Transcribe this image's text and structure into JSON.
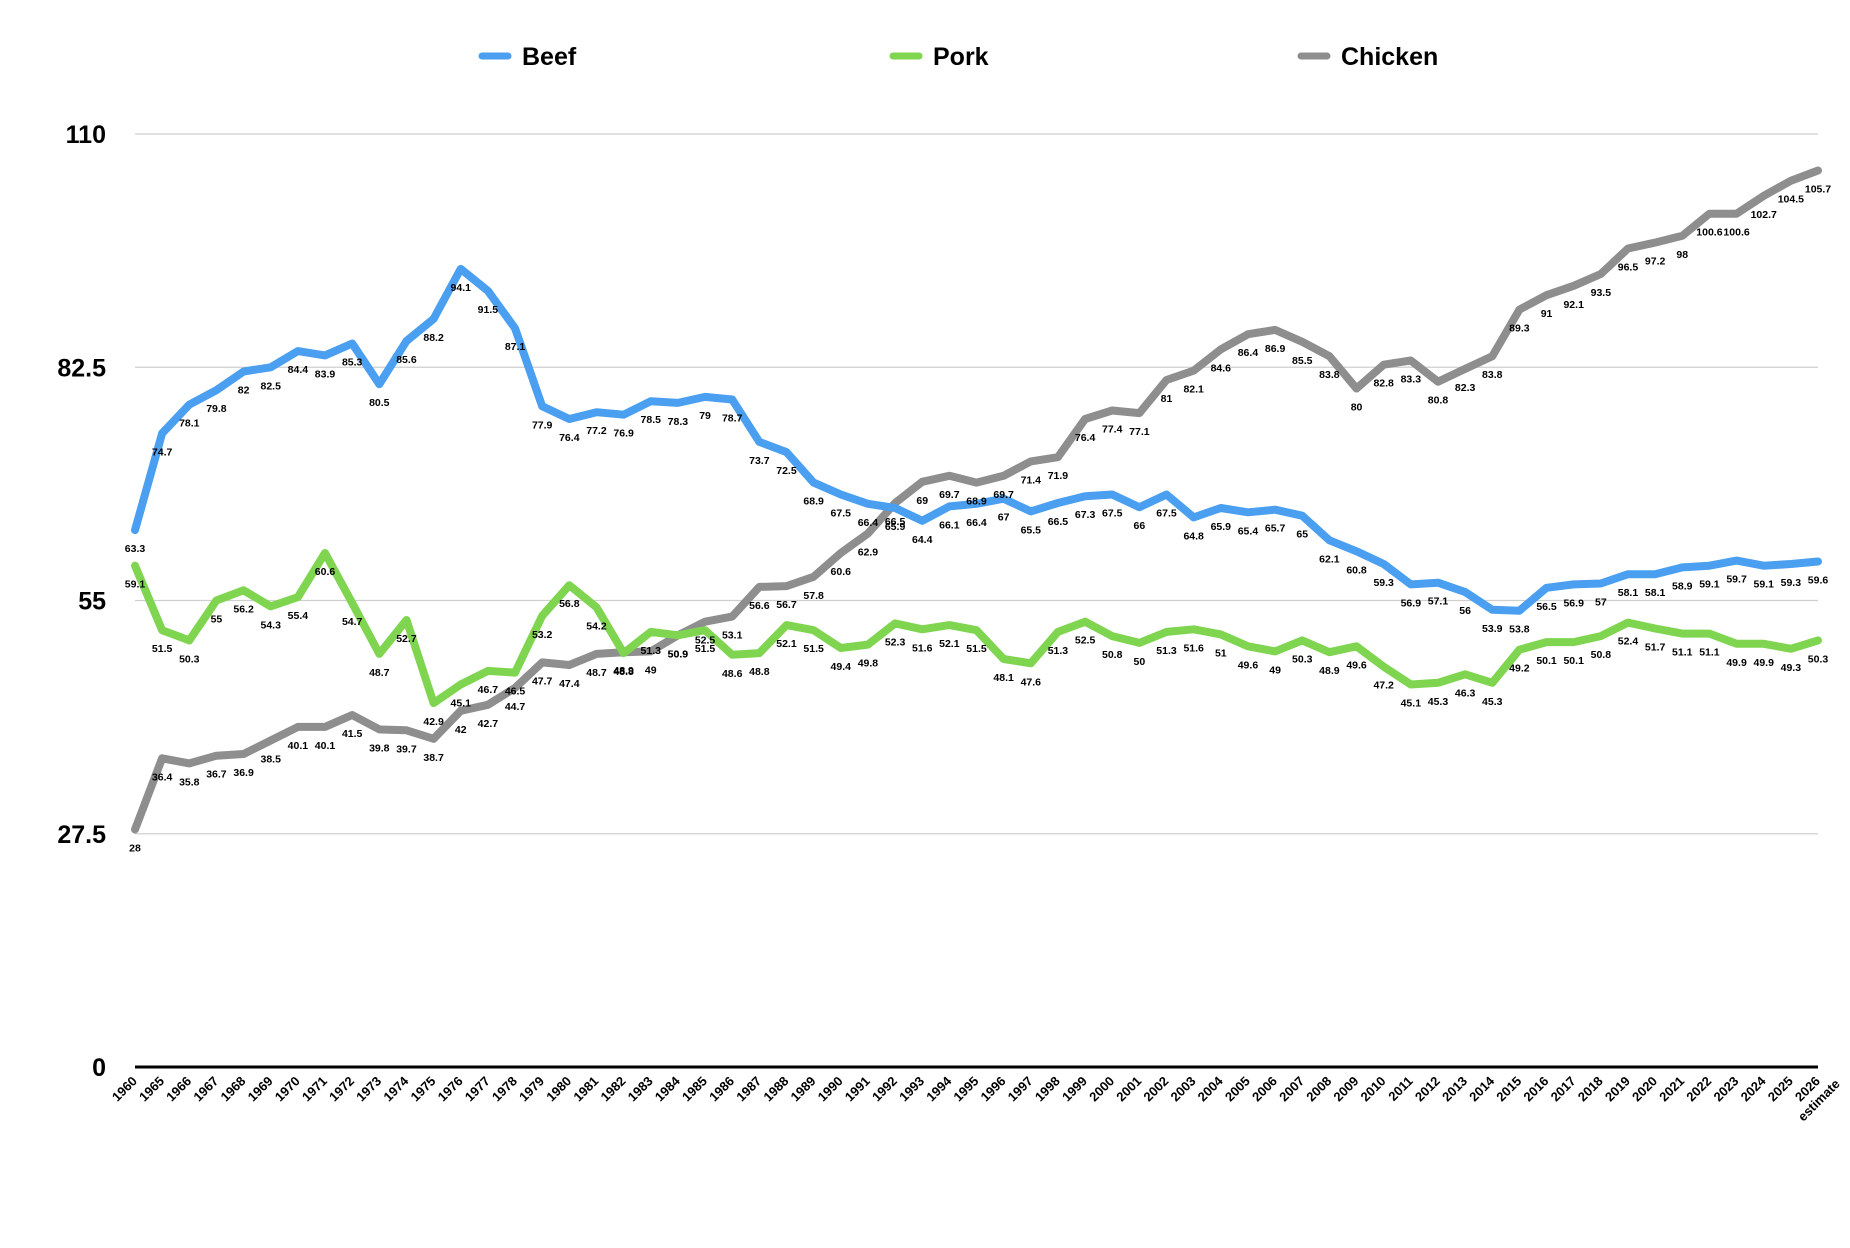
{
  "chart_data": {
    "type": "line",
    "title": "",
    "xlabel": "",
    "ylabel": "",
    "ylim": [
      0,
      110
    ],
    "yticks": [
      0,
      27.5,
      55,
      82.5,
      110
    ],
    "grid": true,
    "legend": "top",
    "categories": [
      "1960",
      "1965",
      "1966",
      "1967",
      "1968",
      "1969",
      "1970",
      "1971",
      "1972",
      "1973",
      "1974",
      "1975",
      "1976",
      "1977",
      "1978",
      "1979",
      "1980",
      "1981",
      "1982",
      "1983",
      "1984",
      "1985",
      "1986",
      "1987",
      "1988",
      "1989",
      "1990",
      "1991",
      "1992",
      "1993",
      "1994",
      "1995",
      "1996",
      "1997",
      "1998",
      "1999",
      "2000",
      "2001",
      "2002",
      "2003",
      "2004",
      "2005",
      "2006",
      "2007",
      "2008",
      "2009",
      "2010",
      "2011",
      "2012",
      "2013",
      "2014",
      "2015",
      "2016",
      "2017",
      "2018",
      "2019",
      "2020",
      "2021",
      "2022",
      "2023",
      "2024",
      "2025",
      "2026 estimate"
    ],
    "series": [
      {
        "name": "Beef",
        "color": "#4a9ff0",
        "values": [
          63.3,
          74.7,
          78.1,
          79.8,
          82,
          82.5,
          84.4,
          83.9,
          85.3,
          80.5,
          85.6,
          88.2,
          94.1,
          91.5,
          87.1,
          77.9,
          76.4,
          77.2,
          76.9,
          78.5,
          78.3,
          79,
          78.7,
          73.7,
          72.5,
          68.9,
          67.5,
          66.4,
          65.9,
          64.4,
          66.1,
          66.4,
          67,
          65.5,
          66.5,
          67.3,
          67.5,
          66,
          67.5,
          64.8,
          65.9,
          65.4,
          65.7,
          65,
          62.1,
          60.8,
          59.3,
          56.9,
          57.1,
          56,
          53.9,
          53.8,
          56.5,
          56.9,
          57,
          58.1,
          58.1,
          58.9,
          59.1,
          59.7,
          59.1,
          59.3,
          59.6
        ]
      },
      {
        "name": "Pork",
        "color": "#7fd54f",
        "values": [
          59.1,
          51.5,
          50.3,
          55,
          56.2,
          54.3,
          55.4,
          60.6,
          54.7,
          48.7,
          52.7,
          42.9,
          45.1,
          46.7,
          46.5,
          53.2,
          56.8,
          54.2,
          48.8,
          51.3,
          50.9,
          51.5,
          48.6,
          48.8,
          52.1,
          51.5,
          49.4,
          49.8,
          52.3,
          51.6,
          52.1,
          51.5,
          48.1,
          47.6,
          51.3,
          52.5,
          50.8,
          50,
          51.3,
          51.6,
          51,
          49.6,
          49,
          50.3,
          48.9,
          49.6,
          47.2,
          45.1,
          45.3,
          46.3,
          45.3,
          49.2,
          50.1,
          50.1,
          50.8,
          52.4,
          51.7,
          51.1,
          51.1,
          49.9,
          49.9,
          49.3,
          50.3
        ]
      },
      {
        "name": "Chicken",
        "color": "#8e8e8e",
        "values": [
          28,
          36.4,
          35.8,
          36.7,
          36.9,
          38.5,
          40.1,
          40.1,
          41.5,
          39.8,
          39.7,
          38.7,
          42,
          42.7,
          44.7,
          47.7,
          47.4,
          48.7,
          48.9,
          49,
          50.9,
          52.5,
          53.1,
          56.6,
          56.7,
          57.8,
          60.6,
          62.9,
          66.5,
          69,
          69.7,
          68.9,
          69.7,
          71.4,
          71.9,
          76.4,
          77.4,
          77.1,
          81,
          82.1,
          84.6,
          86.4,
          86.9,
          85.5,
          83.8,
          80,
          82.8,
          83.3,
          80.8,
          82.3,
          83.8,
          89.3,
          91,
          92.1,
          93.5,
          96.5,
          97.2,
          98,
          100.6,
          100.6,
          102.7,
          104.5,
          105.7
        ]
      }
    ]
  }
}
